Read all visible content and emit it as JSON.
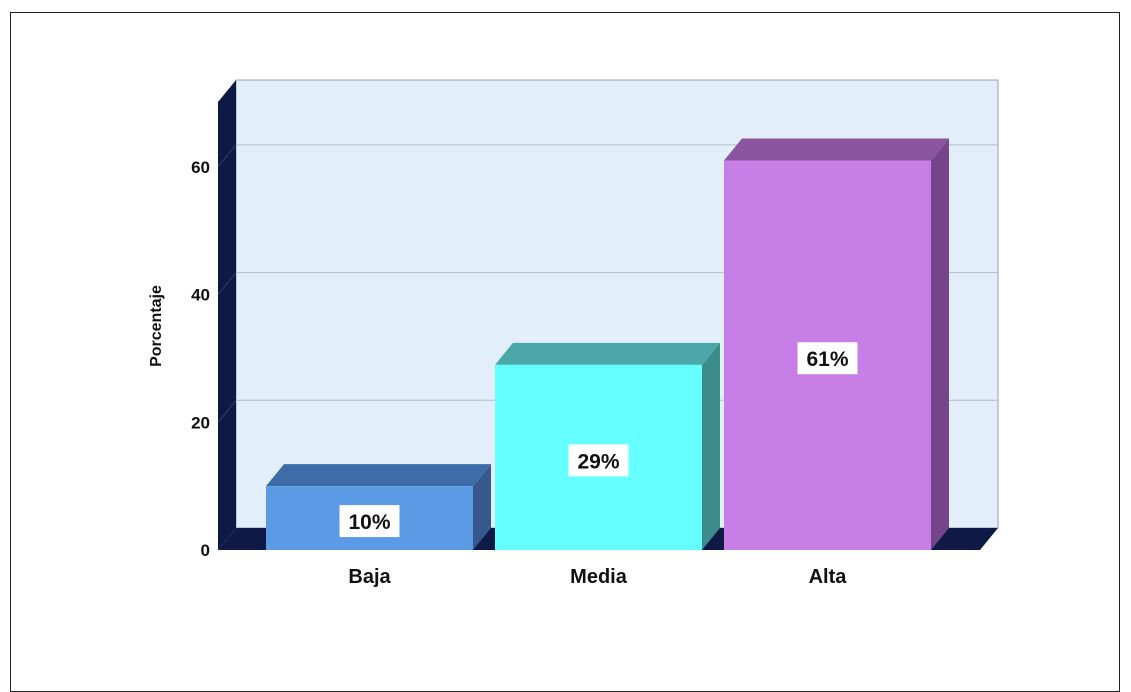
{
  "chart_data": {
    "type": "bar",
    "title": "",
    "xlabel": "",
    "ylabel": "Porcentaje",
    "categories": [
      "Baja",
      "Media",
      "Alta"
    ],
    "values": [
      10,
      29,
      61
    ],
    "data_labels": [
      "10%",
      "29%",
      "61%"
    ],
    "ylim": [
      0,
      70
    ],
    "yticks": [
      0,
      20,
      40,
      60
    ],
    "grid": true,
    "style": "3d-bar",
    "colors": {
      "bars": [
        "#5b9be6",
        "#66ffff",
        "#c77ee6"
      ],
      "bars_top": [
        "#3e6ca8",
        "#4ca8a8",
        "#8a55a0"
      ],
      "bars_side": [
        "#35598c",
        "#3d8c8c",
        "#74458a"
      ],
      "plot_background": "#e2eef9",
      "walls": "#0e1a45",
      "gridline": "#b8bec8"
    }
  }
}
